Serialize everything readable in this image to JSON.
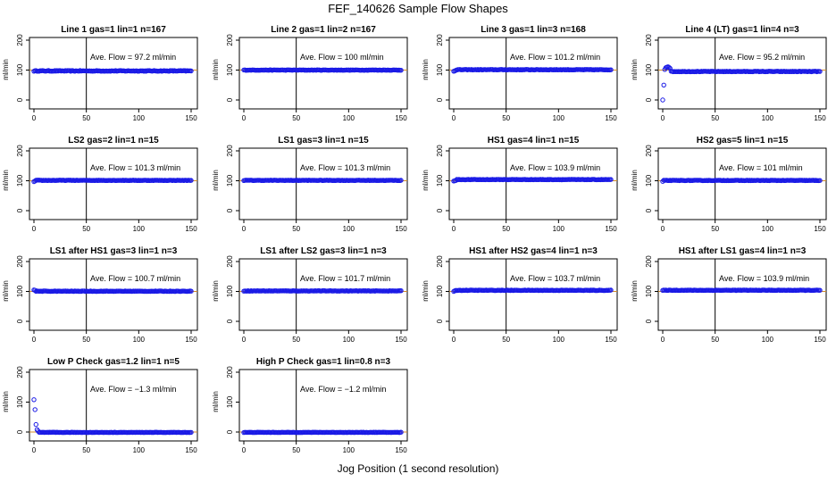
{
  "title": "FEF_140626  Sample Flow Shapes",
  "xlabel": "Jog Position (1 second resolution)",
  "colors": {
    "points": "#1a1ae6",
    "ref_line": "#d08a2a",
    "axis": "#000000",
    "marker_line": "#000000"
  },
  "chart_data": [
    {
      "type": "scatter",
      "title": "Line 1 gas=1 lin=1 n=167",
      "annotation": "Ave. Flow = 97.2  ml/min",
      "ylabel": "ml/min",
      "xlim": [
        0,
        150
      ],
      "ylim": [
        0,
        200
      ],
      "xticks": [
        0,
        50,
        100,
        150
      ],
      "yticks": [
        0,
        100,
        200
      ],
      "vline_x": 50,
      "hline_y": 100,
      "profile": {
        "base": 97.2,
        "start": [],
        "spike": 0,
        "noise": 1.2
      }
    },
    {
      "type": "scatter",
      "title": "Line 2 gas=1 lin=2 n=167",
      "annotation": "Ave. Flow = 100  ml/min",
      "ylabel": "ml/min",
      "xlim": [
        0,
        150
      ],
      "ylim": [
        0,
        200
      ],
      "xticks": [
        0,
        50,
        100,
        150
      ],
      "yticks": [
        0,
        100,
        200
      ],
      "vline_x": 50,
      "hline_y": 100,
      "profile": {
        "base": 100,
        "start": [],
        "spike": 0,
        "noise": 0.8
      }
    },
    {
      "type": "scatter",
      "title": "Line 3 gas=1 lin=3 n=168",
      "annotation": "Ave. Flow = 101.2  ml/min",
      "ylabel": "ml/min",
      "xlim": [
        0,
        150
      ],
      "ylim": [
        0,
        200
      ],
      "xticks": [
        0,
        50,
        100,
        150
      ],
      "yticks": [
        0,
        100,
        200
      ],
      "vline_x": 50,
      "hline_y": 100,
      "profile": {
        "base": 101.2,
        "start": [
          96,
          97,
          99
        ],
        "spike": 0,
        "noise": 1.0
      }
    },
    {
      "type": "scatter",
      "title": "Line 4 (LT) gas=1 lin=4 n=3",
      "annotation": "Ave. Flow = 95.2  ml/min",
      "ylabel": "ml/min",
      "xlim": [
        0,
        150
      ],
      "ylim": [
        0,
        200
      ],
      "xticks": [
        0,
        50,
        100,
        150
      ],
      "yticks": [
        0,
        100,
        200
      ],
      "vline_x": 50,
      "hline_y": 100,
      "profile": {
        "base": 95.2,
        "start": [
          0,
          50,
          102,
          108,
          110,
          111,
          109,
          106
        ],
        "spike": 0,
        "noise": 1.0
      }
    },
    {
      "type": "scatter",
      "title": "LS2 gas=2 lin=1 n=15",
      "annotation": "Ave. Flow = 101.3  ml/min",
      "ylabel": "ml/min",
      "xlim": [
        0,
        150
      ],
      "ylim": [
        0,
        200
      ],
      "xticks": [
        0,
        50,
        100,
        150
      ],
      "yticks": [
        0,
        100,
        200
      ],
      "vline_x": 50,
      "hline_y": 100,
      "profile": {
        "base": 101.3,
        "start": [
          97,
          99
        ],
        "spike": 0,
        "noise": 0.8
      }
    },
    {
      "type": "scatter",
      "title": "LS1 gas=3 lin=1 n=15",
      "annotation": "Ave. Flow = 101.3  ml/min",
      "ylabel": "ml/min",
      "xlim": [
        0,
        150
      ],
      "ylim": [
        0,
        200
      ],
      "xticks": [
        0,
        50,
        100,
        150
      ],
      "yticks": [
        0,
        100,
        200
      ],
      "vline_x": 50,
      "hline_y": 100,
      "profile": {
        "base": 101.3,
        "start": [],
        "spike": 0,
        "noise": 0.8
      }
    },
    {
      "type": "scatter",
      "title": "HS1 gas=4 lin=1 n=15",
      "annotation": "Ave. Flow = 103.9  ml/min",
      "ylabel": "ml/min",
      "xlim": [
        0,
        150
      ],
      "ylim": [
        0,
        200
      ],
      "xticks": [
        0,
        50,
        100,
        150
      ],
      "yticks": [
        0,
        100,
        200
      ],
      "vline_x": 50,
      "hline_y": 100,
      "profile": {
        "base": 103.9,
        "start": [
          99,
          100,
          101
        ],
        "spike": 0,
        "noise": 0.8
      }
    },
    {
      "type": "scatter",
      "title": "HS2 gas=5 lin=1 n=15",
      "annotation": "Ave. Flow = 101  ml/min",
      "ylabel": "ml/min",
      "xlim": [
        0,
        150
      ],
      "ylim": [
        0,
        200
      ],
      "xticks": [
        0,
        50,
        100,
        150
      ],
      "yticks": [
        0,
        100,
        200
      ],
      "vline_x": 50,
      "hline_y": 100,
      "profile": {
        "base": 101,
        "start": [
          98
        ],
        "spike": 0,
        "noise": 0.8
      }
    },
    {
      "type": "scatter",
      "title": "LS1 after HS1 gas=3 lin=1 n=3",
      "annotation": "Ave. Flow = 100.7  ml/min",
      "ylabel": "ml/min",
      "xlim": [
        0,
        150
      ],
      "ylim": [
        0,
        200
      ],
      "xticks": [
        0,
        50,
        100,
        150
      ],
      "yticks": [
        0,
        100,
        200
      ],
      "vline_x": 50,
      "hline_y": 100,
      "profile": {
        "base": 100.7,
        "start": [
          105,
          104
        ],
        "spike": 0,
        "noise": 0.8
      }
    },
    {
      "type": "scatter",
      "title": "LS1 after LS2 gas=3 lin=1 n=3",
      "annotation": "Ave. Flow = 101.7  ml/min",
      "ylabel": "ml/min",
      "xlim": [
        0,
        150
      ],
      "ylim": [
        0,
        200
      ],
      "xticks": [
        0,
        50,
        100,
        150
      ],
      "yticks": [
        0,
        100,
        200
      ],
      "vline_x": 50,
      "hline_y": 100,
      "profile": {
        "base": 101.7,
        "start": [],
        "spike": 0,
        "noise": 0.8
      }
    },
    {
      "type": "scatter",
      "title": "HS1 after HS2 gas=4 lin=1 n=3",
      "annotation": "Ave. Flow = 103.7  ml/min",
      "ylabel": "ml/min",
      "xlim": [
        0,
        150
      ],
      "ylim": [
        0,
        200
      ],
      "xticks": [
        0,
        50,
        100,
        150
      ],
      "yticks": [
        0,
        100,
        200
      ],
      "vline_x": 50,
      "hline_y": 100,
      "profile": {
        "base": 103.7,
        "start": [
          100,
          102
        ],
        "spike": 0,
        "noise": 0.8
      }
    },
    {
      "type": "scatter",
      "title": "HS1 after LS1 gas=4 lin=1 n=3",
      "annotation": "Ave. Flow = 103.9  ml/min",
      "ylabel": "ml/min",
      "xlim": [
        0,
        150
      ],
      "ylim": [
        0,
        200
      ],
      "xticks": [
        0,
        50,
        100,
        150
      ],
      "yticks": [
        0,
        100,
        200
      ],
      "vline_x": 50,
      "hline_y": 100,
      "profile": {
        "base": 103.9,
        "start": [],
        "spike": 0,
        "noise": 0.8
      }
    },
    {
      "type": "scatter",
      "title": "Low P Check gas=1.2 lin=1 n=5",
      "annotation": "Ave. Flow = −1.3  ml/min",
      "ylabel": "ml/min",
      "xlim": [
        0,
        150
      ],
      "ylim": [
        0,
        200
      ],
      "xticks": [
        0,
        50,
        100,
        150
      ],
      "yticks": [
        0,
        100,
        200
      ],
      "vline_x": 50,
      "hline_y": 0,
      "profile": {
        "base": -1.3,
        "start": [
          108,
          75,
          25,
          8,
          3
        ],
        "spike": 0,
        "noise": 0.6
      }
    },
    {
      "type": "scatter",
      "title": "High P Check gas=1 lin=0.8 n=3",
      "annotation": "Ave. Flow = −1.2  ml/min",
      "ylabel": "ml/min",
      "xlim": [
        0,
        150
      ],
      "ylim": [
        0,
        200
      ],
      "xticks": [
        0,
        50,
        100,
        150
      ],
      "yticks": [
        0,
        100,
        200
      ],
      "vline_x": 50,
      "hline_y": 0,
      "profile": {
        "base": -1.2,
        "start": [],
        "spike": 0,
        "noise": 0.6
      }
    }
  ]
}
